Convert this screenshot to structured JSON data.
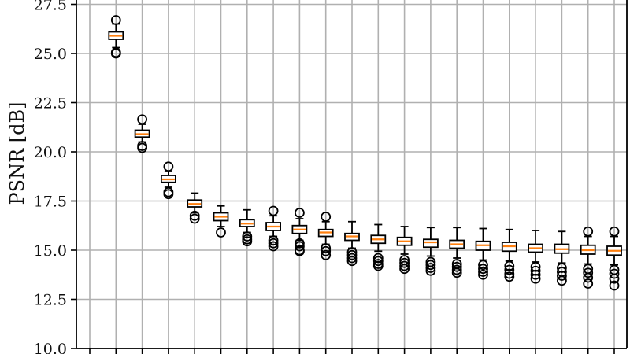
{
  "chart_data": {
    "type": "box",
    "title": "",
    "xlabel": "",
    "ylabel": "PSNR [dB]",
    "ylim": [
      10.0,
      27.7
    ],
    "yticks": [
      10.0,
      12.5,
      15.0,
      17.5,
      20.0,
      22.5,
      25.0,
      27.5
    ],
    "ytick_labels": [
      "10.0",
      "12.5",
      "15.0",
      "17.5",
      "20.0",
      "22.5",
      "25.0",
      "27.5"
    ],
    "grid": true,
    "x_positions": 21,
    "colors": {
      "median": "#ff7f0e",
      "box": "#000000",
      "grid": "#b0b0b0"
    },
    "boxes": [
      {
        "pos": 1,
        "whislo": 25.3,
        "q1": 25.72,
        "med": 25.9,
        "q3": 26.1,
        "whishi": 26.5,
        "fliers": [
          26.7,
          25.05,
          25.0
        ]
      },
      {
        "pos": 2,
        "whislo": 20.5,
        "q1": 20.75,
        "med": 20.9,
        "q3": 21.1,
        "whishi": 21.4,
        "fliers": [
          21.65,
          20.3,
          20.2
        ]
      },
      {
        "pos": 3,
        "whislo": 18.2,
        "q1": 18.45,
        "med": 18.6,
        "q3": 18.8,
        "whishi": 19.0,
        "fliers": [
          19.25,
          17.95,
          17.85
        ]
      },
      {
        "pos": 4,
        "whislo": 16.9,
        "q1": 17.2,
        "med": 17.35,
        "q3": 17.55,
        "whishi": 17.9,
        "fliers": [
          16.75,
          16.6
        ]
      },
      {
        "pos": 5,
        "whislo": 16.2,
        "q1": 16.5,
        "med": 16.7,
        "q3": 16.9,
        "whishi": 17.25,
        "fliers": [
          15.9
        ]
      },
      {
        "pos": 6,
        "whislo": 15.9,
        "q1": 16.2,
        "med": 16.35,
        "q3": 16.55,
        "whishi": 17.05,
        "fliers": [
          15.7,
          15.55,
          15.45
        ]
      },
      {
        "pos": 7,
        "whislo": 15.7,
        "q1": 16.0,
        "med": 16.2,
        "q3": 16.4,
        "whishi": 16.75,
        "fliers": [
          17.0,
          15.5,
          15.35,
          15.2
        ]
      },
      {
        "pos": 8,
        "whislo": 15.5,
        "q1": 15.85,
        "med": 16.05,
        "q3": 16.25,
        "whishi": 16.6,
        "fliers": [
          16.9,
          15.35,
          15.2,
          15.0,
          14.95
        ]
      },
      {
        "pos": 9,
        "whislo": 15.3,
        "q1": 15.7,
        "med": 15.9,
        "q3": 16.05,
        "whishi": 16.45,
        "fliers": [
          16.7,
          15.1,
          14.95,
          14.75
        ]
      },
      {
        "pos": 10,
        "whislo": 15.1,
        "q1": 15.5,
        "med": 15.7,
        "q3": 15.85,
        "whishi": 16.45,
        "fliers": [
          14.9,
          14.75,
          14.6,
          14.45
        ]
      },
      {
        "pos": 11,
        "whislo": 14.95,
        "q1": 15.35,
        "med": 15.55,
        "q3": 15.75,
        "whishi": 16.3,
        "fliers": [
          14.6,
          14.45,
          14.3,
          14.2
        ]
      },
      {
        "pos": 12,
        "whislo": 14.8,
        "q1": 15.25,
        "med": 15.45,
        "q3": 15.65,
        "whishi": 16.2,
        "fliers": [
          14.5,
          14.35,
          14.2,
          14.05
        ]
      },
      {
        "pos": 13,
        "whislo": 14.7,
        "q1": 15.15,
        "med": 15.4,
        "q3": 15.55,
        "whishi": 16.15,
        "fliers": [
          14.4,
          14.25,
          14.1,
          13.95
        ]
      },
      {
        "pos": 14,
        "whislo": 14.6,
        "q1": 15.1,
        "med": 15.3,
        "q3": 15.5,
        "whishi": 16.15,
        "fliers": [
          14.3,
          14.15,
          14.0,
          13.85
        ]
      },
      {
        "pos": 15,
        "whislo": 14.5,
        "q1": 15.0,
        "med": 15.25,
        "q3": 15.45,
        "whishi": 16.1,
        "fliers": [
          14.25,
          14.05,
          13.9,
          13.75
        ]
      },
      {
        "pos": 16,
        "whislo": 14.45,
        "q1": 14.95,
        "med": 15.2,
        "q3": 15.4,
        "whishi": 16.05,
        "fliers": [
          14.2,
          14.0,
          13.8,
          13.65
        ]
      },
      {
        "pos": 17,
        "whislo": 14.4,
        "q1": 14.9,
        "med": 15.1,
        "q3": 15.3,
        "whishi": 16.0,
        "fliers": [
          14.15,
          13.95,
          13.75,
          13.55
        ]
      },
      {
        "pos": 18,
        "whislo": 14.35,
        "q1": 14.85,
        "med": 15.05,
        "q3": 15.3,
        "whishi": 15.95,
        "fliers": [
          14.1,
          13.9,
          13.7,
          13.45
        ]
      },
      {
        "pos": 19,
        "whislo": 14.3,
        "q1": 14.8,
        "med": 15.0,
        "q3": 15.25,
        "whishi": 15.7,
        "fliers": [
          15.95,
          14.05,
          13.85,
          13.6,
          13.3
        ]
      },
      {
        "pos": 20,
        "whislo": 14.25,
        "q1": 14.75,
        "med": 14.97,
        "q3": 15.2,
        "whishi": 15.7,
        "fliers": [
          15.95,
          14.0,
          13.8,
          13.55,
          13.2
        ]
      }
    ]
  }
}
